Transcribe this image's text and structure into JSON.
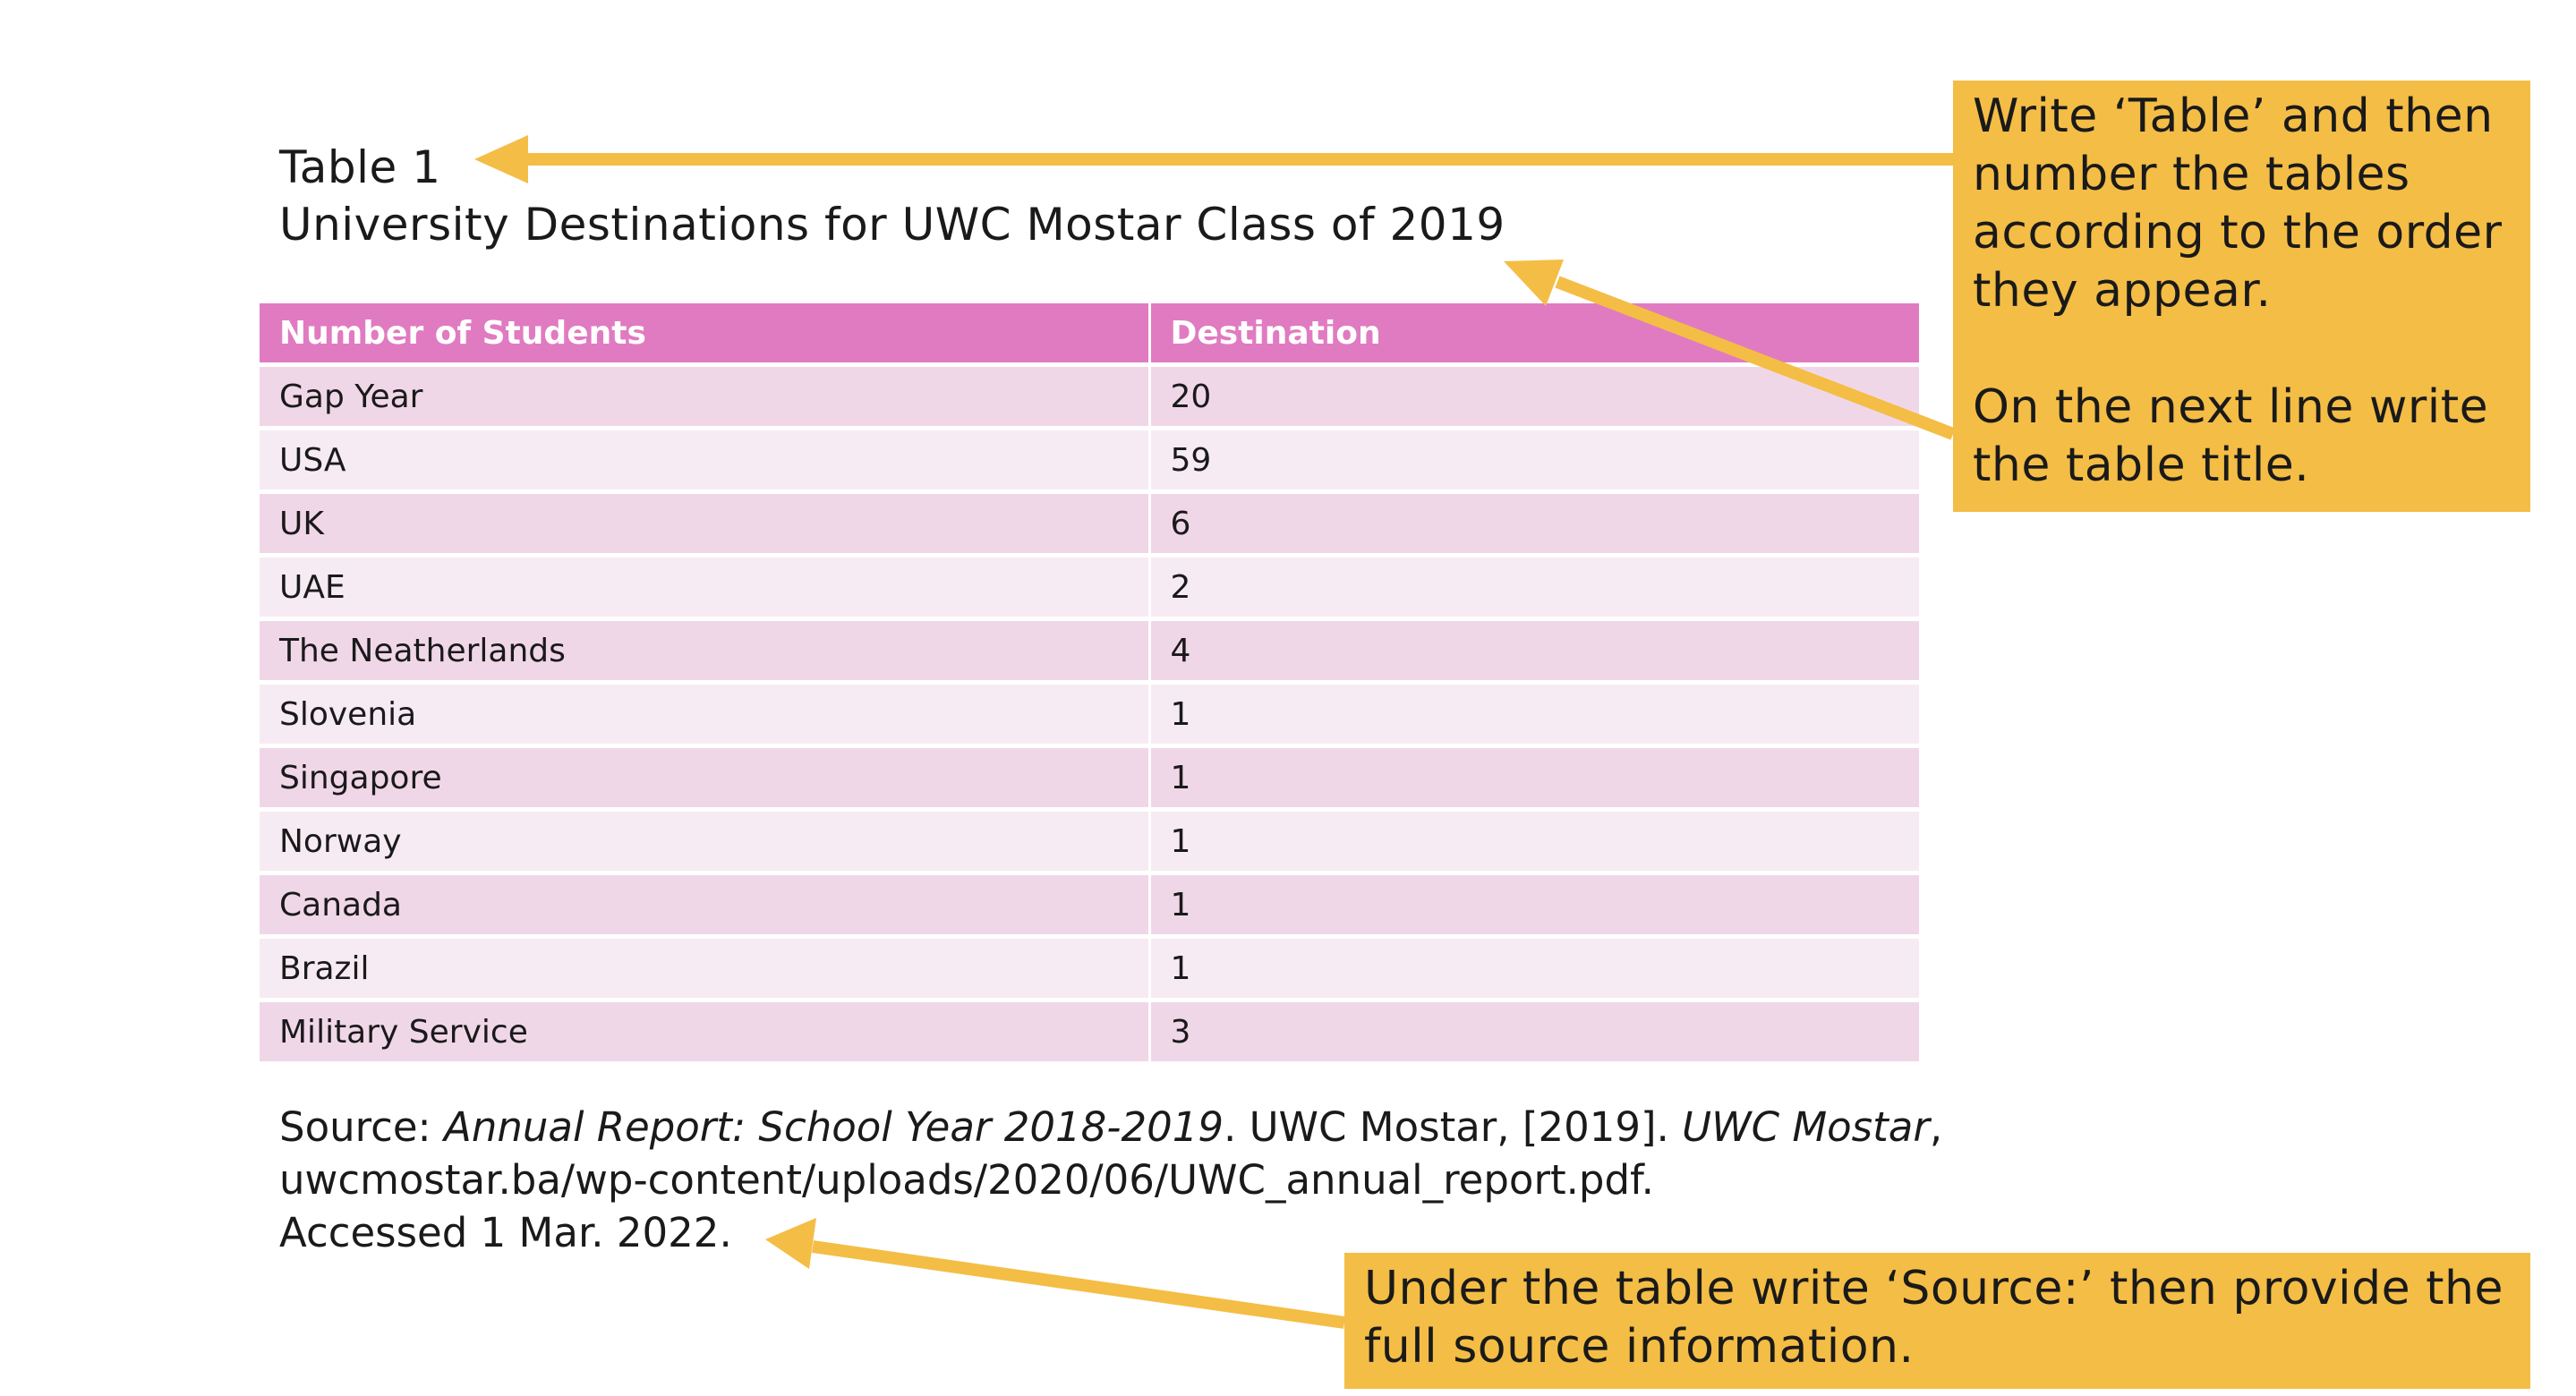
{
  "caption": {
    "label": "Table 1",
    "title": "University Destinations for UWC Mostar Class of 2019"
  },
  "table": {
    "headers": [
      "Number of Students",
      "Destination"
    ],
    "rows": [
      [
        "Gap Year",
        "20"
      ],
      [
        "USA",
        "59"
      ],
      [
        "UK",
        "6"
      ],
      [
        "UAE",
        "2"
      ],
      [
        "The Neatherlands",
        "4"
      ],
      [
        "Slovenia",
        "1"
      ],
      [
        "Singapore",
        "1"
      ],
      [
        "Norway",
        "1"
      ],
      [
        "Canada",
        "1"
      ],
      [
        "Brazil",
        "1"
      ],
      [
        "Military Service",
        "3"
      ]
    ]
  },
  "source": {
    "prefix": "Source: ",
    "report_title": "Annual Report: School Year 2018-2019",
    "publisher": ". UWC Mostar, [2019]. ",
    "site": "UWC Mostar",
    "comma": ",",
    "url": "uwcmostar.ba/wp-content/uploads/2020/06/UWC_annual_report.pdf.",
    "accessed": "Accessed 1 Mar. 2022."
  },
  "callouts": {
    "table_numbering_lines": [
      "Write ‘Table’ and then",
      "number the tables",
      "according to the order",
      "they appear."
    ],
    "table_title_lines": [
      "On the next line write",
      "the table title."
    ],
    "source_lines": [
      "Under the table write ‘Source:’ then provide the",
      "full source information."
    ]
  },
  "colors": {
    "header_bg": "#e07bc1",
    "row_dark": "#f0d7e8",
    "row_light": "#f7ebf3",
    "callout_bg": "#f4bd45",
    "arrow": "#f4bd45"
  }
}
